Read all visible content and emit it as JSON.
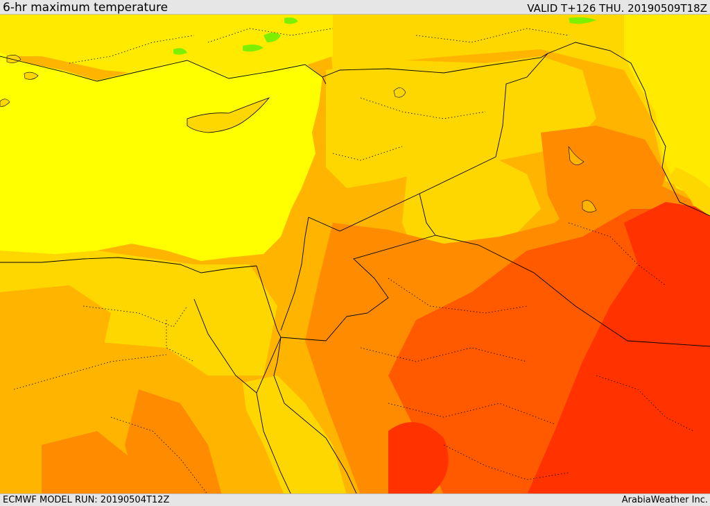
{
  "header": {
    "title": "6-hr maximum temperature",
    "valid": "VALID T+126 THU. 20190509T18Z"
  },
  "footer": {
    "model_run": "ECMWF MODEL RUN: 20190504T12Z",
    "credit": "ArabiaWeather Inc."
  },
  "palette": {
    "sea": "#ffff00",
    "yellow": "#ffea00",
    "gold": "#ffd700",
    "amber": "#ffb400",
    "orange": "#ff8c00",
    "red_orange": "#ff5a00",
    "red": "#ff3200",
    "green": "#7cf000",
    "border": "#000000"
  }
}
